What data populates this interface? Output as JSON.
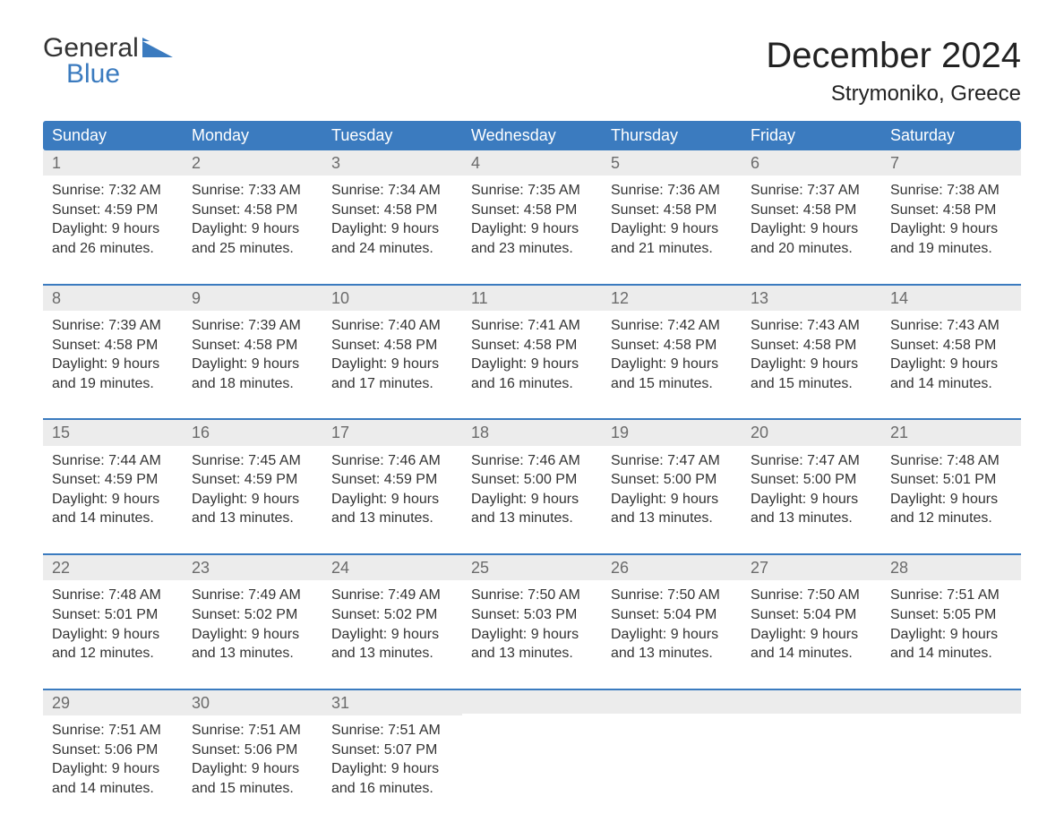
{
  "brand": {
    "general": "General",
    "blue": "Blue",
    "logo_color": "#3b7bbf"
  },
  "title": "December 2024",
  "location": "Strymoniko, Greece",
  "day_names": [
    "Sunday",
    "Monday",
    "Tuesday",
    "Wednesday",
    "Thursday",
    "Friday",
    "Saturday"
  ],
  "colors": {
    "header_bg": "#3b7bbf",
    "header_text": "#ffffff",
    "week_border": "#3b7bbf",
    "daynum_bg": "#ececec",
    "daynum_text": "#6b6b6b",
    "body_text": "#333333"
  },
  "weeks": [
    [
      {
        "n": "1",
        "sr": "Sunrise: 7:32 AM",
        "ss": "Sunset: 4:59 PM",
        "d1": "Daylight: 9 hours",
        "d2": "and 26 minutes."
      },
      {
        "n": "2",
        "sr": "Sunrise: 7:33 AM",
        "ss": "Sunset: 4:58 PM",
        "d1": "Daylight: 9 hours",
        "d2": "and 25 minutes."
      },
      {
        "n": "3",
        "sr": "Sunrise: 7:34 AM",
        "ss": "Sunset: 4:58 PM",
        "d1": "Daylight: 9 hours",
        "d2": "and 24 minutes."
      },
      {
        "n": "4",
        "sr": "Sunrise: 7:35 AM",
        "ss": "Sunset: 4:58 PM",
        "d1": "Daylight: 9 hours",
        "d2": "and 23 minutes."
      },
      {
        "n": "5",
        "sr": "Sunrise: 7:36 AM",
        "ss": "Sunset: 4:58 PM",
        "d1": "Daylight: 9 hours",
        "d2": "and 21 minutes."
      },
      {
        "n": "6",
        "sr": "Sunrise: 7:37 AM",
        "ss": "Sunset: 4:58 PM",
        "d1": "Daylight: 9 hours",
        "d2": "and 20 minutes."
      },
      {
        "n": "7",
        "sr": "Sunrise: 7:38 AM",
        "ss": "Sunset: 4:58 PM",
        "d1": "Daylight: 9 hours",
        "d2": "and 19 minutes."
      }
    ],
    [
      {
        "n": "8",
        "sr": "Sunrise: 7:39 AM",
        "ss": "Sunset: 4:58 PM",
        "d1": "Daylight: 9 hours",
        "d2": "and 19 minutes."
      },
      {
        "n": "9",
        "sr": "Sunrise: 7:39 AM",
        "ss": "Sunset: 4:58 PM",
        "d1": "Daylight: 9 hours",
        "d2": "and 18 minutes."
      },
      {
        "n": "10",
        "sr": "Sunrise: 7:40 AM",
        "ss": "Sunset: 4:58 PM",
        "d1": "Daylight: 9 hours",
        "d2": "and 17 minutes."
      },
      {
        "n": "11",
        "sr": "Sunrise: 7:41 AM",
        "ss": "Sunset: 4:58 PM",
        "d1": "Daylight: 9 hours",
        "d2": "and 16 minutes."
      },
      {
        "n": "12",
        "sr": "Sunrise: 7:42 AM",
        "ss": "Sunset: 4:58 PM",
        "d1": "Daylight: 9 hours",
        "d2": "and 15 minutes."
      },
      {
        "n": "13",
        "sr": "Sunrise: 7:43 AM",
        "ss": "Sunset: 4:58 PM",
        "d1": "Daylight: 9 hours",
        "d2": "and 15 minutes."
      },
      {
        "n": "14",
        "sr": "Sunrise: 7:43 AM",
        "ss": "Sunset: 4:58 PM",
        "d1": "Daylight: 9 hours",
        "d2": "and 14 minutes."
      }
    ],
    [
      {
        "n": "15",
        "sr": "Sunrise: 7:44 AM",
        "ss": "Sunset: 4:59 PM",
        "d1": "Daylight: 9 hours",
        "d2": "and 14 minutes."
      },
      {
        "n": "16",
        "sr": "Sunrise: 7:45 AM",
        "ss": "Sunset: 4:59 PM",
        "d1": "Daylight: 9 hours",
        "d2": "and 13 minutes."
      },
      {
        "n": "17",
        "sr": "Sunrise: 7:46 AM",
        "ss": "Sunset: 4:59 PM",
        "d1": "Daylight: 9 hours",
        "d2": "and 13 minutes."
      },
      {
        "n": "18",
        "sr": "Sunrise: 7:46 AM",
        "ss": "Sunset: 5:00 PM",
        "d1": "Daylight: 9 hours",
        "d2": "and 13 minutes."
      },
      {
        "n": "19",
        "sr": "Sunrise: 7:47 AM",
        "ss": "Sunset: 5:00 PM",
        "d1": "Daylight: 9 hours",
        "d2": "and 13 minutes."
      },
      {
        "n": "20",
        "sr": "Sunrise: 7:47 AM",
        "ss": "Sunset: 5:00 PM",
        "d1": "Daylight: 9 hours",
        "d2": "and 13 minutes."
      },
      {
        "n": "21",
        "sr": "Sunrise: 7:48 AM",
        "ss": "Sunset: 5:01 PM",
        "d1": "Daylight: 9 hours",
        "d2": "and 12 minutes."
      }
    ],
    [
      {
        "n": "22",
        "sr": "Sunrise: 7:48 AM",
        "ss": "Sunset: 5:01 PM",
        "d1": "Daylight: 9 hours",
        "d2": "and 12 minutes."
      },
      {
        "n": "23",
        "sr": "Sunrise: 7:49 AM",
        "ss": "Sunset: 5:02 PM",
        "d1": "Daylight: 9 hours",
        "d2": "and 13 minutes."
      },
      {
        "n": "24",
        "sr": "Sunrise: 7:49 AM",
        "ss": "Sunset: 5:02 PM",
        "d1": "Daylight: 9 hours",
        "d2": "and 13 minutes."
      },
      {
        "n": "25",
        "sr": "Sunrise: 7:50 AM",
        "ss": "Sunset: 5:03 PM",
        "d1": "Daylight: 9 hours",
        "d2": "and 13 minutes."
      },
      {
        "n": "26",
        "sr": "Sunrise: 7:50 AM",
        "ss": "Sunset: 5:04 PM",
        "d1": "Daylight: 9 hours",
        "d2": "and 13 minutes."
      },
      {
        "n": "27",
        "sr": "Sunrise: 7:50 AM",
        "ss": "Sunset: 5:04 PM",
        "d1": "Daylight: 9 hours",
        "d2": "and 14 minutes."
      },
      {
        "n": "28",
        "sr": "Sunrise: 7:51 AM",
        "ss": "Sunset: 5:05 PM",
        "d1": "Daylight: 9 hours",
        "d2": "and 14 minutes."
      }
    ],
    [
      {
        "n": "29",
        "sr": "Sunrise: 7:51 AM",
        "ss": "Sunset: 5:06 PM",
        "d1": "Daylight: 9 hours",
        "d2": "and 14 minutes."
      },
      {
        "n": "30",
        "sr": "Sunrise: 7:51 AM",
        "ss": "Sunset: 5:06 PM",
        "d1": "Daylight: 9 hours",
        "d2": "and 15 minutes."
      },
      {
        "n": "31",
        "sr": "Sunrise: 7:51 AM",
        "ss": "Sunset: 5:07 PM",
        "d1": "Daylight: 9 hours",
        "d2": "and 16 minutes."
      },
      {
        "empty": true
      },
      {
        "empty": true
      },
      {
        "empty": true
      },
      {
        "empty": true
      }
    ]
  ]
}
